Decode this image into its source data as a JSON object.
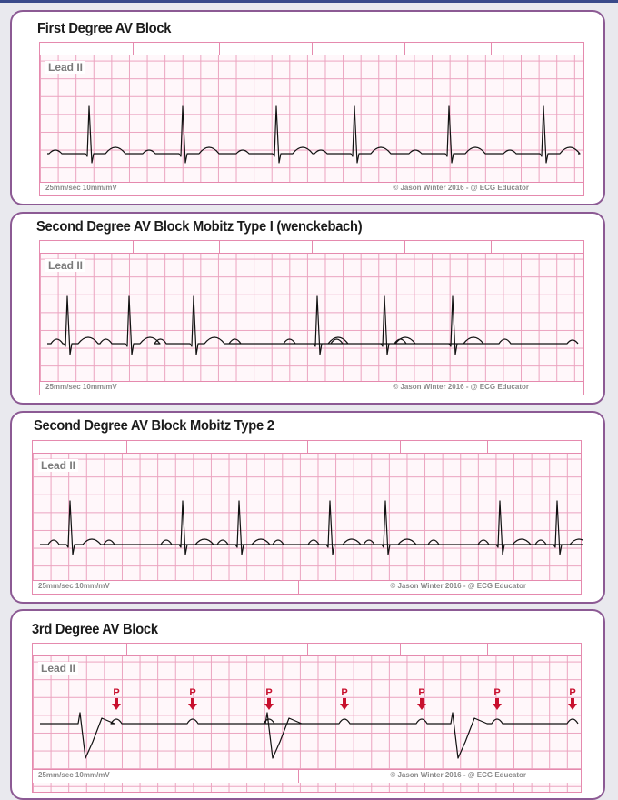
{
  "panels": [
    {
      "title": "First Degree AV Block",
      "lead": "Lead II",
      "speed": "25mm/sec  10mm/mV",
      "credit": "© Jason Winter 2016 - @ ECG Educator"
    },
    {
      "title": "Second Degree AV Block Mobitz Type I (wenckebach)",
      "lead": "Lead II",
      "speed": "25mm/sec  10mm/mV",
      "credit": "© Jason Winter 2016 - @ ECG Educator"
    },
    {
      "title": "Second Degree AV Block Mobitz Type 2",
      "lead": "Lead II",
      "speed": "25mm/sec  10mm/mV",
      "credit": "© Jason Winter 2016 - @ ECG Educator"
    },
    {
      "title": "3rd Degree AV Block",
      "lead": "Lead II",
      "speed": "25mm/sec  10mm/mV",
      "credit": "© Jason Winter 2016 - @ ECG Educator",
      "p_marker_label": "P"
    }
  ],
  "colors": {
    "grid": "#eba3bf",
    "trace": "#111111",
    "p_marker": "#c8102e",
    "card_border": "#8c5a94"
  }
}
